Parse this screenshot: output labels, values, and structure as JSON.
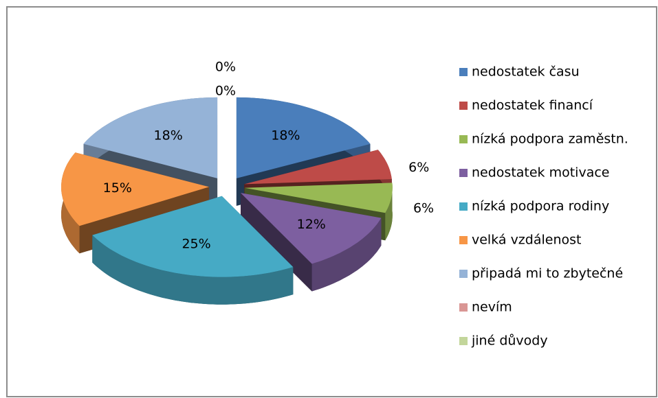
{
  "chart_data": {
    "type": "pie",
    "categories": [
      "nedostatek času",
      "nedostatek financí",
      "nízká podpora zaměstn.",
      "nedostatek motivace",
      "nízká podpora rodiny",
      "velká vzdálenost",
      "připadá mi to zbytečné",
      "nevím",
      "jiné důvody"
    ],
    "values": [
      18,
      6,
      6,
      12,
      25,
      15,
      18,
      0,
      0
    ],
    "value_labels": [
      "18%",
      "6%",
      "6%",
      "12%",
      "25%",
      "15%",
      "18%",
      "0%",
      "0%"
    ],
    "colors": [
      "#4a7ebb",
      "#be4b48",
      "#98b954",
      "#7d5fa0",
      "#46aac5",
      "#f79646",
      "#95b3d7",
      "#d99694",
      "#c3d69b"
    ],
    "legend": "right"
  }
}
